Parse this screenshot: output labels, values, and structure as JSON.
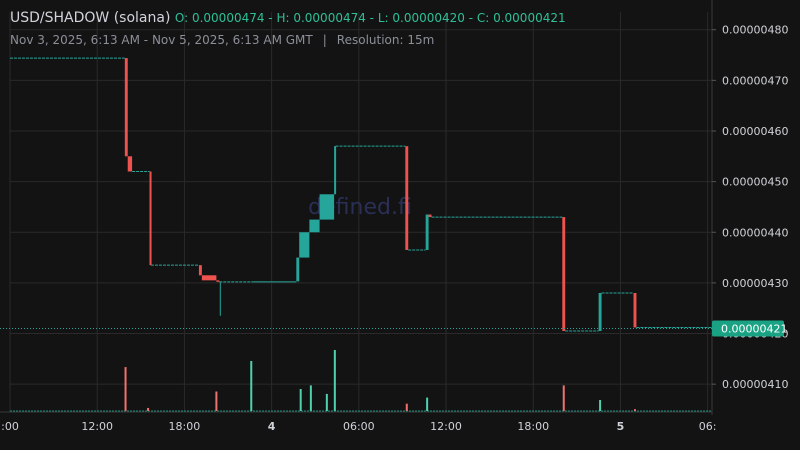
{
  "header": {
    "symbol": "USD/SHADOW (solana)",
    "ohlc": "O: 0.00000474 - H: 0.00000474 - L: 0.00000420 - C: 0.00000421",
    "range": "Nov 3, 2025, 6:13 AM - Nov 5, 2025, 6:13 AM GMT",
    "separator": "|",
    "resolution": "Resolution: 15m"
  },
  "watermark": "defined.fi",
  "colors": {
    "up": "#26a69a",
    "down": "#ef5350",
    "flat": "#26a69a",
    "last_price_bg": "#1aa284",
    "grid": "#2a2a2a"
  },
  "chart_data": {
    "type": "candlestick-step",
    "x_ticks": [
      {
        "label": ":00",
        "t": 0,
        "bold": false
      },
      {
        "label": "12:00",
        "t": 6,
        "bold": false
      },
      {
        "label": "18:00",
        "t": 12,
        "bold": false
      },
      {
        "label": "4",
        "t": 18,
        "bold": true
      },
      {
        "label": "06:00",
        "t": 24,
        "bold": false
      },
      {
        "label": "12:00",
        "t": 30,
        "bold": false
      },
      {
        "label": "18:00",
        "t": 36,
        "bold": false
      },
      {
        "label": "5",
        "t": 42,
        "bold": true
      },
      {
        "label": "06:",
        "t": 48,
        "bold": false
      }
    ],
    "y_ticks": [
      "0.00000410",
      "0.00000420",
      "0.00000430",
      "0.00000440",
      "0.00000450",
      "0.00000460",
      "0.00000470",
      "0.00000480"
    ],
    "y_tick_values": [
      4.1,
      4.2,
      4.3,
      4.4,
      4.5,
      4.6,
      4.7,
      4.8
    ],
    "last_price_label": "0.00000421",
    "last_price": 4.21,
    "t_range": [
      0,
      48.3
    ],
    "y_range": [
      4.045,
      4.835
    ],
    "steps": [
      {
        "t0": 0,
        "t1": 7.9,
        "o": 4.744,
        "c": 4.744
      },
      {
        "t0": 7.9,
        "t1": 8.1,
        "o": 4.744,
        "c": 4.55
      },
      {
        "t0": 8.1,
        "t1": 8.4,
        "o": 4.55,
        "c": 4.52
      },
      {
        "t0": 8.4,
        "t1": 9.6,
        "o": 4.52,
        "c": 4.52
      },
      {
        "t0": 9.6,
        "t1": 9.7,
        "o": 4.52,
        "c": 4.335
      },
      {
        "t0": 9.7,
        "t1": 13.0,
        "o": 4.335,
        "c": 4.335
      },
      {
        "t0": 13.0,
        "t1": 13.2,
        "o": 4.335,
        "c": 4.315
      },
      {
        "t0": 13.2,
        "t1": 14.2,
        "o": 4.315,
        "c": 4.305
      },
      {
        "t0": 14.2,
        "t1": 14.4,
        "o": 4.305,
        "c": 4.302
      },
      {
        "t0": 14.4,
        "t1": 16.6,
        "o": 4.302,
        "c": 4.302,
        "low": 4.235
      },
      {
        "t0": 16.6,
        "t1": 19.7,
        "o": 4.302,
        "c": 4.303
      },
      {
        "t0": 19.7,
        "t1": 19.9,
        "o": 4.303,
        "c": 4.35
      },
      {
        "t0": 19.9,
        "t1": 20.6,
        "o": 4.35,
        "c": 4.4
      },
      {
        "t0": 20.6,
        "t1": 21.3,
        "o": 4.4,
        "c": 4.425
      },
      {
        "t0": 21.3,
        "t1": 22.3,
        "o": 4.425,
        "c": 4.475
      },
      {
        "t0": 22.3,
        "t1": 22.4,
        "o": 4.475,
        "c": 4.57
      },
      {
        "t0": 22.4,
        "t1": 27.2,
        "o": 4.57,
        "c": 4.57
      },
      {
        "t0": 27.2,
        "t1": 27.4,
        "o": 4.57,
        "c": 4.365
      },
      {
        "t0": 27.4,
        "t1": 28.6,
        "o": 4.365,
        "c": 4.365
      },
      {
        "t0": 28.6,
        "t1": 28.8,
        "o": 4.365,
        "c": 4.435
      },
      {
        "t0": 28.8,
        "t1": 29.0,
        "o": 4.435,
        "c": 4.43
      },
      {
        "t0": 29.0,
        "t1": 38.0,
        "o": 4.43,
        "c": 4.43
      },
      {
        "t0": 38.0,
        "t1": 38.2,
        "o": 4.43,
        "c": 4.205
      },
      {
        "t0": 38.2,
        "t1": 40.5,
        "o": 4.205,
        "c": 4.205
      },
      {
        "t0": 40.5,
        "t1": 40.7,
        "o": 4.205,
        "c": 4.28
      },
      {
        "t0": 40.7,
        "t1": 42.9,
        "o": 4.28,
        "c": 4.28
      },
      {
        "t0": 42.9,
        "t1": 43.1,
        "o": 4.28,
        "c": 4.212
      },
      {
        "t0": 43.1,
        "t1": 48.3,
        "o": 4.212,
        "c": 4.212
      }
    ],
    "volume_ymax": 1.0,
    "volume": [
      {
        "t": 7.95,
        "v": 0.72,
        "dir": "down"
      },
      {
        "t": 9.5,
        "v": 0.05,
        "dir": "down"
      },
      {
        "t": 14.2,
        "v": 0.32,
        "dir": "down"
      },
      {
        "t": 16.6,
        "v": 0.82,
        "dir": "up"
      },
      {
        "t": 20.0,
        "v": 0.36,
        "dir": "up"
      },
      {
        "t": 20.7,
        "v": 0.42,
        "dir": "up"
      },
      {
        "t": 21.8,
        "v": 0.28,
        "dir": "up"
      },
      {
        "t": 22.35,
        "v": 1.0,
        "dir": "up"
      },
      {
        "t": 27.3,
        "v": 0.12,
        "dir": "down"
      },
      {
        "t": 28.7,
        "v": 0.22,
        "dir": "up"
      },
      {
        "t": 38.1,
        "v": 0.42,
        "dir": "down"
      },
      {
        "t": 40.6,
        "v": 0.18,
        "dir": "up"
      },
      {
        "t": 43.0,
        "v": 0.03,
        "dir": "down"
      }
    ]
  }
}
